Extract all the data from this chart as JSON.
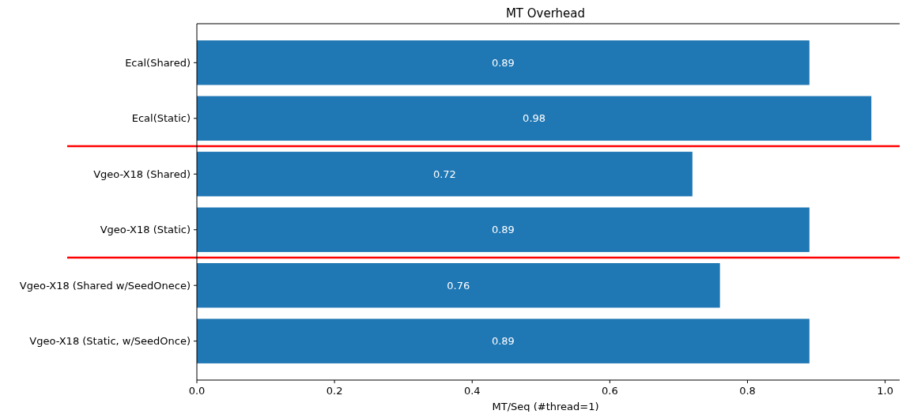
{
  "chart_data": {
    "type": "bar",
    "orientation": "horizontal",
    "title": "MT Overhead",
    "xlabel": "MT/Seq (#thread=1)",
    "categories": [
      "Ecal(Shared)",
      "Ecal(Static)",
      "Vgeo-X18 (Shared)",
      "Vgeo-X18 (Static)",
      "Vgeo-X18 (Shared w/SeedOnece)",
      "Vgeo-X18 (Static, w/SeedOnce)"
    ],
    "values": [
      0.89,
      0.98,
      0.72,
      0.89,
      0.76,
      0.89
    ],
    "color": "#1f77b4",
    "data_labels": true,
    "xlim": [
      0,
      1.02
    ],
    "xticks": [
      {
        "value": 0,
        "label": "0.0"
      },
      {
        "value": 0.2,
        "label": "0.2"
      },
      {
        "value": 0.4,
        "label": "0.4"
      },
      {
        "value": 0.6,
        "label": "0.6"
      },
      {
        "value": 0.8,
        "label": "0.8"
      },
      {
        "value": 1,
        "label": "1.0"
      }
    ],
    "grid": false
  }
}
